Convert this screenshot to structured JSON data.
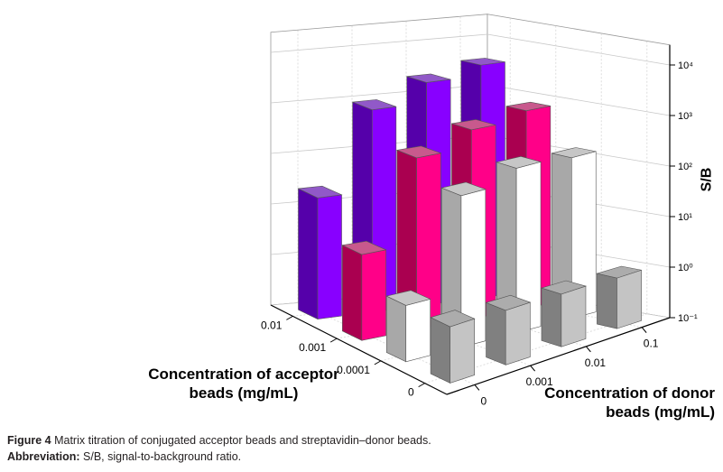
{
  "chart_data": {
    "type": "bar3d",
    "title": "",
    "xlabel": "Concentration of acceptor beads (mg/mL)",
    "ylabel": "Concentration of donor beads (mg/mL)",
    "zlabel": "S/B",
    "z_scale": "log",
    "zlim": [
      0.1,
      25000
    ],
    "grid": true,
    "acceptor_categories": [
      "0.01",
      "0.001",
      "0.0001",
      "0"
    ],
    "donor_categories": [
      "0",
      "0.001",
      "0.01",
      "0.1"
    ],
    "z_tick_labels": [
      "10⁻¹",
      "10⁰",
      "10¹",
      "10²",
      "10³",
      "10⁴"
    ],
    "z_tick_values": [
      0.1,
      1,
      10,
      100,
      1000,
      10000
    ],
    "series": [
      {
        "acceptor": "0.01",
        "color": "#8800ff",
        "side": "#5500aa",
        "values": [
          25,
          1000,
          2500,
          4000
        ]
      },
      {
        "acceptor": "0.001",
        "color": "#ff0088",
        "side": "#aa0050",
        "values": [
          5,
          250,
          550,
          800
        ]
      },
      {
        "acceptor": "0.0001",
        "color": "#ffffff",
        "side": "#a8a8a8",
        "values": [
          1.3,
          100,
          180,
          150
        ]
      },
      {
        "acceptor": "0",
        "color": "#c4c4c4",
        "side": "#808080",
        "values": [
          1.3,
          1.2,
          1.1,
          1.0
        ]
      }
    ]
  },
  "caption": {
    "figure_label": "Figure 4",
    "figure_text": " Matrix titration of conjugated acceptor beads and streptavidin–donor beads.",
    "abbrev_label": "Abbreviation:",
    "abbrev_text": " S/B, signal-to-background ratio."
  },
  "titles": {
    "acceptor_line1": "Concentration of acceptor",
    "acceptor_line2": "beads (mg/mL)",
    "donor_line1": "Concentration of donor",
    "donor_line2": "beads (mg/mL)",
    "z": "S/B"
  }
}
